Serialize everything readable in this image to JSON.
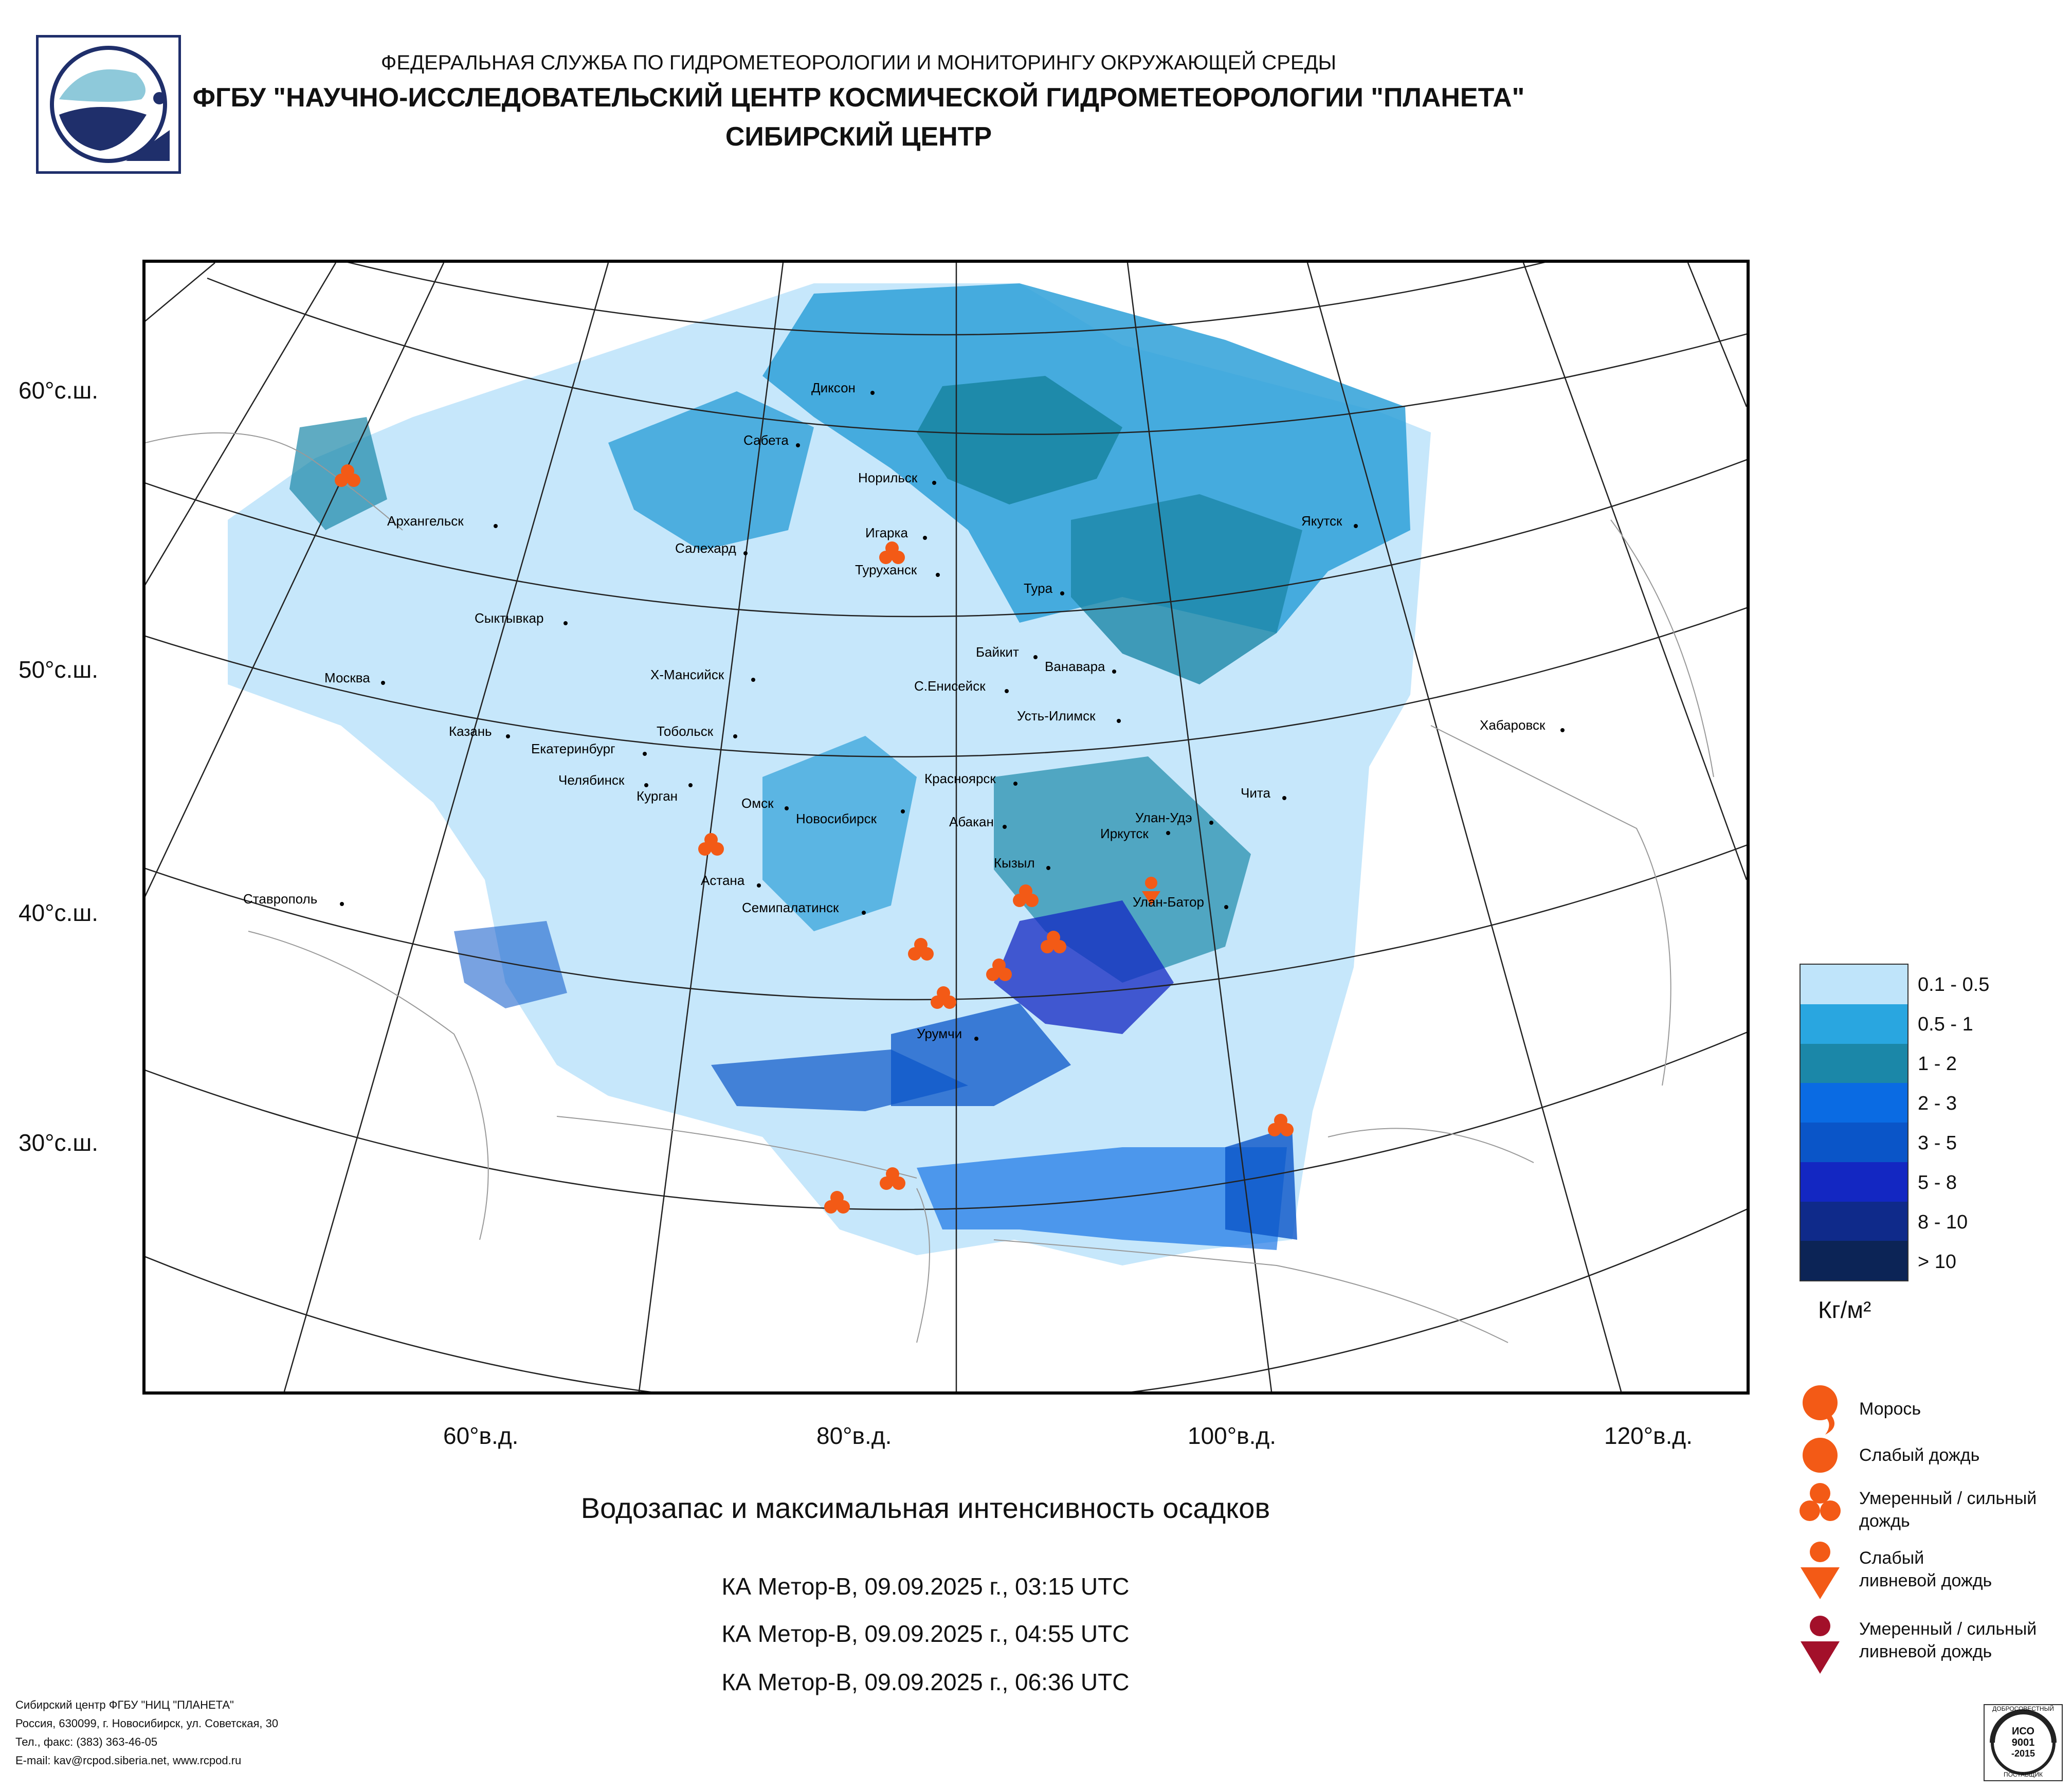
{
  "header": {
    "line1": "ФЕДЕРАЛЬНАЯ СЛУЖБА ПО ГИДРОМЕТЕОРОЛОГИИ И МОНИТОРИНГУ ОКРУЖАЮЩЕЙ СРЕДЫ",
    "line2": "ФГБУ \"НАУЧНО-ИССЛЕДОВАТЕЛЬСКИЙ ЦЕНТР КОСМИЧЕСКОЙ ГИДРОМЕТЕОРОЛОГИИ \"ПЛАНЕТА\"",
    "line3": "СИБИРСКИЙ ЦЕНТР"
  },
  "map": {
    "lat_labels": [
      "60°с.ш.",
      "50°с.ш.",
      "40°с.ш.",
      "30°с.ш."
    ],
    "lon_labels": [
      "60°в.д.",
      "80°в.д.",
      "100°в.д.",
      "120°в.д."
    ],
    "cities": [
      "Диксон",
      "Сабета",
      "Норильск",
      "Игарка",
      "Туруханск",
      "Салехард",
      "Архангельск",
      "Сыктывкар",
      "Якутск",
      "Тура",
      "Байкит",
      "Ванавара",
      "Х-Мансийск",
      "С.Енисейск",
      "Москва",
      "Усть-Илимск",
      "Хабаровск",
      "Казань",
      "Тобольск",
      "Екатеринбург",
      "Челябинск",
      "Курган",
      "Омск",
      "Новосибирск",
      "Красноярск",
      "Чита",
      "Абакан",
      "Улан-Удэ",
      "Иркутск",
      "Кызыл",
      "Астана",
      "Ставрополь",
      "Семипалатинск",
      "Улан-Батор",
      "Урумчи"
    ]
  },
  "legend": {
    "classes": [
      {
        "label": "0.1 - 0.5",
        "color": "#bfe4fa"
      },
      {
        "label": "0.5 - 1",
        "color": "#29a6e0"
      },
      {
        "label": "1 - 2",
        "color": "#1b87a8"
      },
      {
        "label": "2 - 3",
        "color": "#0a6be3"
      },
      {
        "label": "3 - 5",
        "color": "#0a55c8"
      },
      {
        "label": "5 - 8",
        "color": "#1327c2"
      },
      {
        "label": "8 - 10",
        "color": "#0f2a8a"
      },
      {
        "label": "> 10",
        "color": "#0c2456"
      }
    ],
    "unit": "Кг/м²"
  },
  "precip_symbols": [
    {
      "label": "Морось",
      "icon": "drizzle-icon",
      "color": "#f35a16"
    },
    {
      "label": "Слабый дождь",
      "icon": "light-rain-icon",
      "color": "#f35a16"
    },
    {
      "label": "Умеренный / сильный дождь",
      "icon": "moderate-rain-icon",
      "color": "#f35a16"
    },
    {
      "label": "Слабый ливневой дождь",
      "icon": "light-shower-icon",
      "color": "#f35a16"
    },
    {
      "label": "Умеренный / сильный ливневой дождь",
      "icon": "heavy-shower-icon",
      "color": "#a3102a"
    }
  ],
  "caption": {
    "title": "Водозапас и максимальная интенсивность осадков",
    "passes": [
      "КА Meтop-B, 09.09.2025 г., 03:15 UTC",
      "КА Meтop-B, 09.09.2025 г., 04:55 UTC",
      "КА Meтop-B, 09.09.2025 г., 06:36 UTC"
    ]
  },
  "footer": [
    "Сибирский центр ФГБУ \"НИЦ \"ПЛАНЕТА\"",
    "Россия, 630099, г. Новосибирск, ул. Советская, 30",
    "Тел., факс: (383) 363-46-05",
    "E-mail: kav@rcpod.siberia.net, www.rcpod.ru"
  ],
  "iso_badge": {
    "line1": "ИСО",
    "line2": "9001",
    "line3": "-2015",
    "top": "ДОБРОСОВЕСТНЫЙ",
    "bottom": "ПОСТАВЩИК"
  }
}
